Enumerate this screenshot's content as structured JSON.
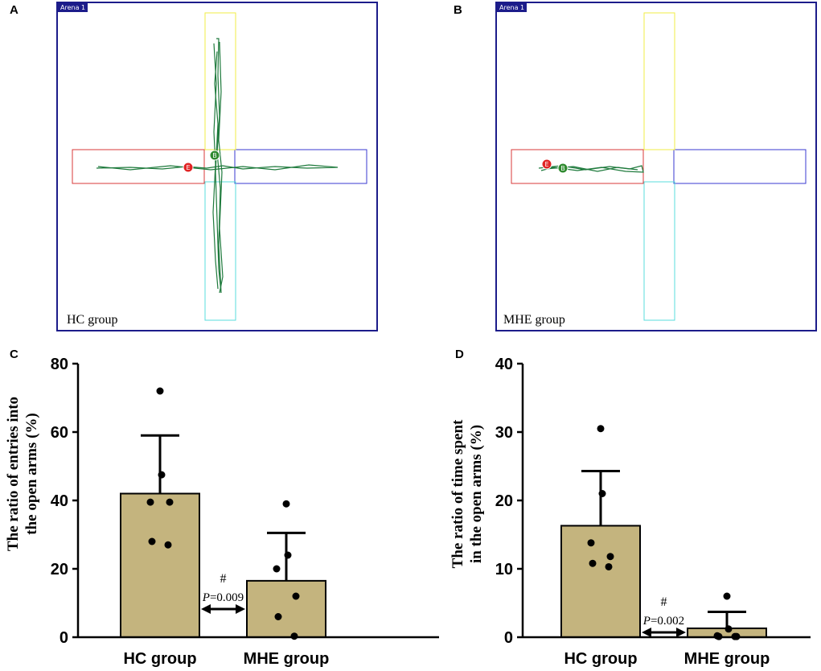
{
  "panels": {
    "a": {
      "letter": "A",
      "arena_tag": "Arena 1",
      "caption": "HC group",
      "start_marker": "B",
      "end_marker": "E"
    },
    "b": {
      "letter": "B",
      "arena_tag": "Arena 1",
      "caption": "MHE group",
      "start_marker": "B",
      "end_marker": "E"
    },
    "c": {
      "letter": "C"
    },
    "d": {
      "letter": "D"
    }
  },
  "colors": {
    "bar": "#c4b47e",
    "track": "#1e7a3c",
    "arena_border": "#1c1c8a",
    "arm_top": "#f2ee44",
    "arm_left": "#d93a3a",
    "arm_right": "#3a3ad0",
    "arm_bottom": "#58dede",
    "marker_end": "#e02424",
    "marker_start": "#2f8a2f"
  },
  "chart_data": [
    {
      "type": "bar",
      "title": "",
      "categories": [
        "HC group",
        "MHE group"
      ],
      "values": [
        42,
        16.5
      ],
      "error_upper": [
        59,
        30.5
      ],
      "points": [
        [
          72,
          47.5,
          39.5,
          39.5,
          28,
          27
        ],
        [
          39,
          24,
          20,
          12,
          6,
          0.3
        ]
      ],
      "ylabel_lines": [
        "The ratio of entries into",
        "the open arms (%)"
      ],
      "ylim": [
        0,
        80
      ],
      "yticks": [
        0,
        20,
        40,
        60,
        80
      ],
      "annotation_symbol": "#",
      "annotation_p_label": "P",
      "annotation_p_value": "=0.009"
    },
    {
      "type": "bar",
      "title": "",
      "categories": [
        "HC group",
        "MHE group"
      ],
      "values": [
        16.3,
        1.3
      ],
      "error_upper": [
        24.3,
        3.7
      ],
      "points": [
        [
          30.5,
          21,
          13.8,
          11.8,
          10.8,
          10.3
        ],
        [
          6,
          1.2,
          0.2,
          0.1,
          0.1,
          0.1
        ]
      ],
      "ylabel_lines": [
        "The ratio of time spent",
        "in the open arms (%)"
      ],
      "ylim": [
        0,
        40
      ],
      "yticks": [
        0,
        10,
        20,
        30,
        40
      ],
      "annotation_symbol": "#",
      "annotation_p_label": "P",
      "annotation_p_value": "=0.002"
    }
  ]
}
